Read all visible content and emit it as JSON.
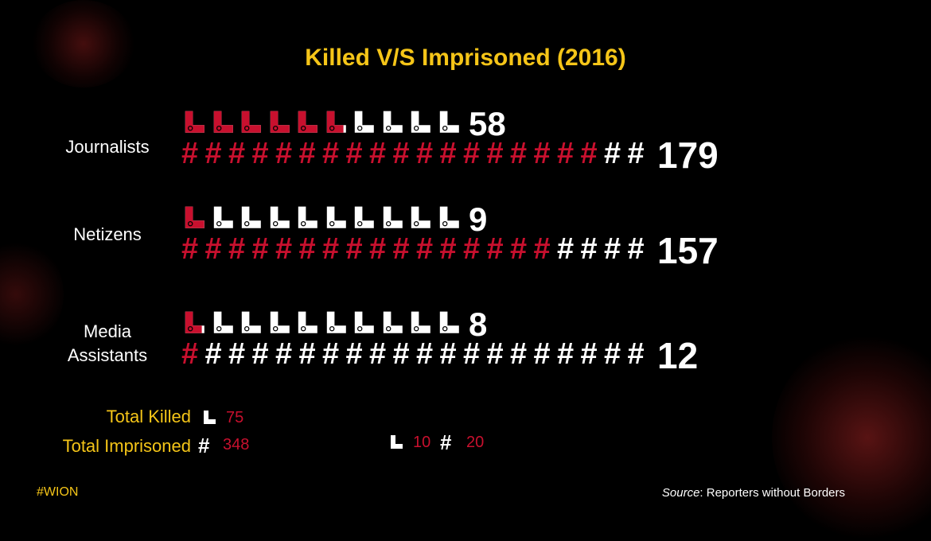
{
  "chart_data": {
    "type": "pictograph",
    "title": "Killed V/S Imprisoned (2016)",
    "series": [
      {
        "name": "Killed",
        "icon": "gun-icon",
        "color": "#c8102e"
      },
      {
        "name": "Imprisoned",
        "icon": "hash-icon",
        "color": "#c8102e"
      }
    ],
    "categories": [
      {
        "label_lines": [
          "Journalists"
        ],
        "killed": 58,
        "imprisoned": 179
      },
      {
        "label_lines": [
          "Netizens"
        ],
        "killed": 9,
        "imprisoned": 157
      },
      {
        "label_lines": [
          "Media",
          "Assistants"
        ],
        "killed": 8,
        "imprisoned": 12
      }
    ],
    "icon_scale": {
      "gun_per_icon": 10,
      "hash_per_icon": 20
    },
    "totals": {
      "killed_label": "Total Killed",
      "killed_value": "75",
      "imprisoned_label": "Total Imprisoned",
      "imprisoned_value": "348"
    },
    "key": {
      "gun_value": "10",
      "hash_value": "20"
    }
  },
  "colors": {
    "accent": "#f5c518",
    "red": "#c8102e",
    "white": "#ffffff",
    "background": "#000000"
  },
  "footer": {
    "tag": "#WION",
    "source_label": "Source",
    "source_text": ": Reporters without Borders"
  }
}
